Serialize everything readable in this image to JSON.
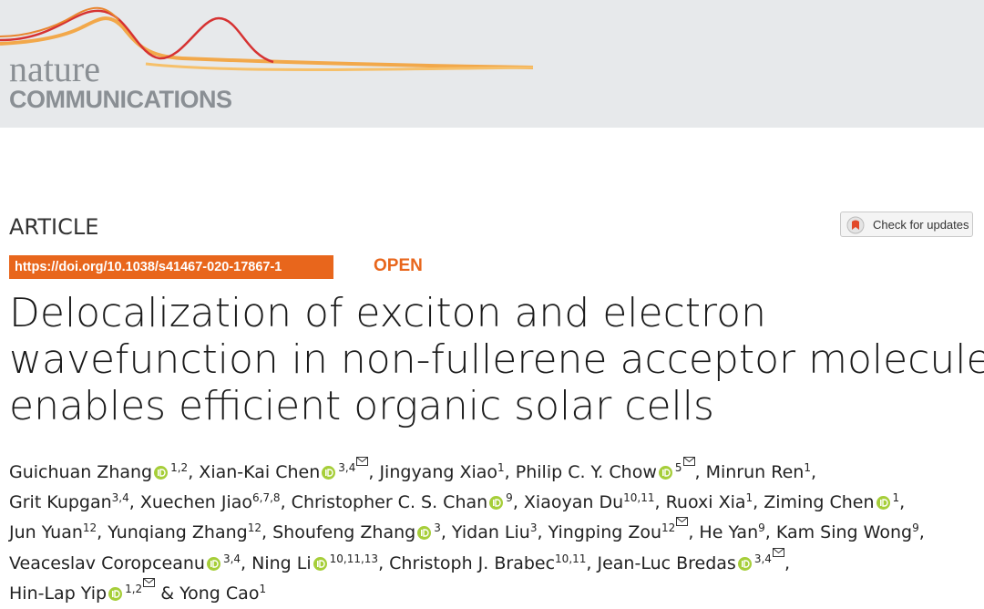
{
  "header": {
    "logo_top": "nature",
    "logo_bottom": "COMMUNICATIONS"
  },
  "article_type": "ARTICLE",
  "check_updates": "Check for updates",
  "doi": "https://doi.org/10.1038/s41467-020-17867-1",
  "access": "OPEN",
  "title_lines": [
    "Delocalization of exciton and electron",
    "wavefunction in non-fullerene acceptor molecules",
    "enables efficient organic solar cells"
  ],
  "author_lines": [
    [
      {
        "name": "Guichuan Zhang",
        "orcid": true,
        "sup": "1,2",
        "sep": ", "
      },
      {
        "name": "Xian-Kai Chen",
        "orcid": true,
        "sup": "3,4",
        "mail": true,
        "sep": ", "
      },
      {
        "name": "Jingyang Xiao",
        "sup": "1",
        "sep": ", "
      },
      {
        "name": "Philip C. Y. Chow",
        "orcid": true,
        "sup": "5",
        "mail": true,
        "sep": ", "
      },
      {
        "name": "Minrun Ren",
        "sup": "1",
        "sep": ","
      }
    ],
    [
      {
        "name": "Grit Kupgan",
        "sup": "3,4",
        "sep": ", "
      },
      {
        "name": "Xuechen Jiao",
        "sup": "6,7,8",
        "sep": ", "
      },
      {
        "name": "Christopher C. S. Chan",
        "orcid": true,
        "sup": "9",
        "sep": ", "
      },
      {
        "name": "Xiaoyan Du",
        "sup": "10,11",
        "sep": ", "
      },
      {
        "name": "Ruoxi Xia",
        "sup": "1",
        "sep": ", "
      },
      {
        "name": "Ziming Chen",
        "orcid": true,
        "sup": "1",
        "sep": ","
      }
    ],
    [
      {
        "name": "Jun Yuan",
        "sup": "12",
        "sep": ", "
      },
      {
        "name": "Yunqiang Zhang",
        "sup": "12",
        "sep": ", "
      },
      {
        "name": "Shoufeng Zhang",
        "orcid": true,
        "sup": "3",
        "sep": ", "
      },
      {
        "name": "Yidan Liu",
        "sup": "3",
        "sep": ", "
      },
      {
        "name": "Yingping Zou",
        "sup": "12",
        "mail": true,
        "sep": ", "
      },
      {
        "name": "He Yan",
        "sup": "9",
        "sep": ", "
      },
      {
        "name": "Kam Sing Wong",
        "sup": "9",
        "sep": ","
      }
    ],
    [
      {
        "name": "Veaceslav Coropceanu",
        "orcid": true,
        "sup": "3,4",
        "sep": ", "
      },
      {
        "name": "Ning Li",
        "orcid": true,
        "sup": "10,11,13",
        "sep": ", "
      },
      {
        "name": "Christoph J. Brabec",
        "sup": "10,11",
        "sep": ", "
      },
      {
        "name": "Jean-Luc Bredas",
        "orcid": true,
        "sup": "3,4",
        "mail": true,
        "sep": ","
      }
    ],
    [
      {
        "name": "Hin-Lap Yip",
        "orcid": true,
        "sup": "1,2",
        "mail": true,
        "sep": " & "
      },
      {
        "name": "Yong Cao",
        "sup": "1"
      }
    ]
  ]
}
